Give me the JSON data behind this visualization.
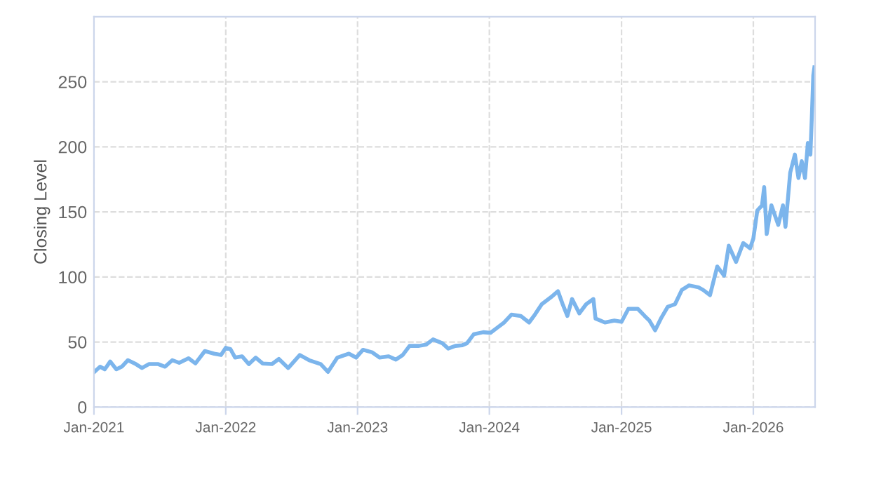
{
  "chart_data": {
    "type": "line",
    "ylabel": "Closing Level",
    "x": [
      "2021-01-02",
      "2021-01-18",
      "2021-01-31",
      "2021-02-15",
      "2021-03-04",
      "2021-03-19",
      "2021-04-05",
      "2021-04-24",
      "2021-05-14",
      "2021-06-02",
      "2021-06-28",
      "2021-07-17",
      "2021-08-06",
      "2021-08-25",
      "2021-09-20",
      "2021-10-09",
      "2021-11-04",
      "2021-11-30",
      "2021-12-19",
      "2022-01-01",
      "2022-01-14",
      "2022-01-27",
      "2022-02-15",
      "2022-03-06",
      "2022-03-25",
      "2022-04-13",
      "2022-05-09",
      "2022-05-28",
      "2022-06-23",
      "2022-07-25",
      "2022-08-20",
      "2022-09-21",
      "2022-10-11",
      "2022-11-06",
      "2022-12-08",
      "2022-12-28",
      "2023-01-16",
      "2023-02-11",
      "2023-03-03",
      "2023-03-28",
      "2023-04-17",
      "2023-05-06",
      "2023-05-25",
      "2023-06-20",
      "2023-07-10",
      "2023-07-29",
      "2023-08-24",
      "2023-09-09",
      "2023-09-29",
      "2023-10-18",
      "2023-10-31",
      "2023-11-19",
      "2023-12-15",
      "2024-01-04",
      "2024-01-23",
      "2024-02-11",
      "2024-03-02",
      "2024-03-28",
      "2024-04-20",
      "2024-05-06",
      "2024-05-25",
      "2024-06-20",
      "2024-07-09",
      "2024-07-22",
      "2024-08-04",
      "2024-08-17",
      "2024-09-06",
      "2024-09-25",
      "2024-10-15",
      "2024-10-21",
      "2024-11-16",
      "2024-12-12",
      "2025-01-01",
      "2025-01-20",
      "2025-02-15",
      "2025-03-06",
      "2025-03-19",
      "2025-04-04",
      "2025-04-20",
      "2025-05-09",
      "2025-05-29",
      "2025-06-17",
      "2025-07-07",
      "2025-08-02",
      "2025-08-15",
      "2025-09-03",
      "2025-09-23",
      "2025-10-12",
      "2025-10-25",
      "2025-11-14",
      "2025-12-04",
      "2025-12-23",
      "2026-01-01",
      "2026-01-12",
      "2026-01-25",
      "2026-01-31",
      "2026-02-07",
      "2026-02-20",
      "2026-03-11",
      "2026-03-24",
      "2026-03-31",
      "2026-04-13",
      "2026-04-26",
      "2026-05-06",
      "2026-05-15",
      "2026-05-24",
      "2026-06-01",
      "2026-06-08",
      "2026-06-12",
      "2026-06-16",
      "2026-06-19"
    ],
    "series": [
      {
        "color": "#7cb5ec",
        "values": [
          27,
          31,
          29,
          35,
          29,
          31,
          36,
          33.5,
          30,
          33,
          33,
          31,
          36,
          34,
          37.5,
          33.5,
          43,
          41,
          40,
          45.5,
          44.5,
          38,
          39,
          33,
          38,
          33.5,
          33,
          37,
          30,
          40,
          36,
          33,
          27,
          38,
          41,
          38,
          44,
          42,
          38,
          39,
          36.5,
          40,
          47,
          47,
          48,
          52,
          49,
          45,
          47,
          47.5,
          49,
          56,
          57.5,
          57,
          61,
          65,
          71,
          70,
          65,
          71,
          79,
          84.5,
          89,
          79,
          70,
          83,
          72,
          79,
          83,
          68,
          65,
          66.5,
          65.5,
          75.5,
          75.5,
          70,
          66.5,
          59,
          68,
          77,
          79,
          90,
          93.5,
          92,
          90,
          86,
          108,
          101,
          124,
          111.5,
          126,
          122,
          129.5,
          151,
          155,
          169,
          133,
          155,
          140,
          155,
          138.5,
          180,
          194,
          176,
          189,
          176,
          203,
          194,
          223,
          255,
          261
        ]
      }
    ],
    "xlim": [
      "2021-01-01",
      "2026-06-21"
    ],
    "xticks": [
      {
        "value": "2021-01-01",
        "label": "Jan-2021"
      },
      {
        "value": "2022-01-01",
        "label": "Jan-2022"
      },
      {
        "value": "2023-01-01",
        "label": "Jan-2023"
      },
      {
        "value": "2024-01-01",
        "label": "Jan-2024"
      },
      {
        "value": "2025-01-01",
        "label": "Jan-2025"
      },
      {
        "value": "2026-01-01",
        "label": "Jan-2026"
      }
    ],
    "ylim": [
      0,
      300
    ],
    "yticks": [
      0,
      50,
      100,
      150,
      200,
      250
    ],
    "grid": true,
    "line_style": "solid",
    "marker": "none",
    "legend": false
  }
}
